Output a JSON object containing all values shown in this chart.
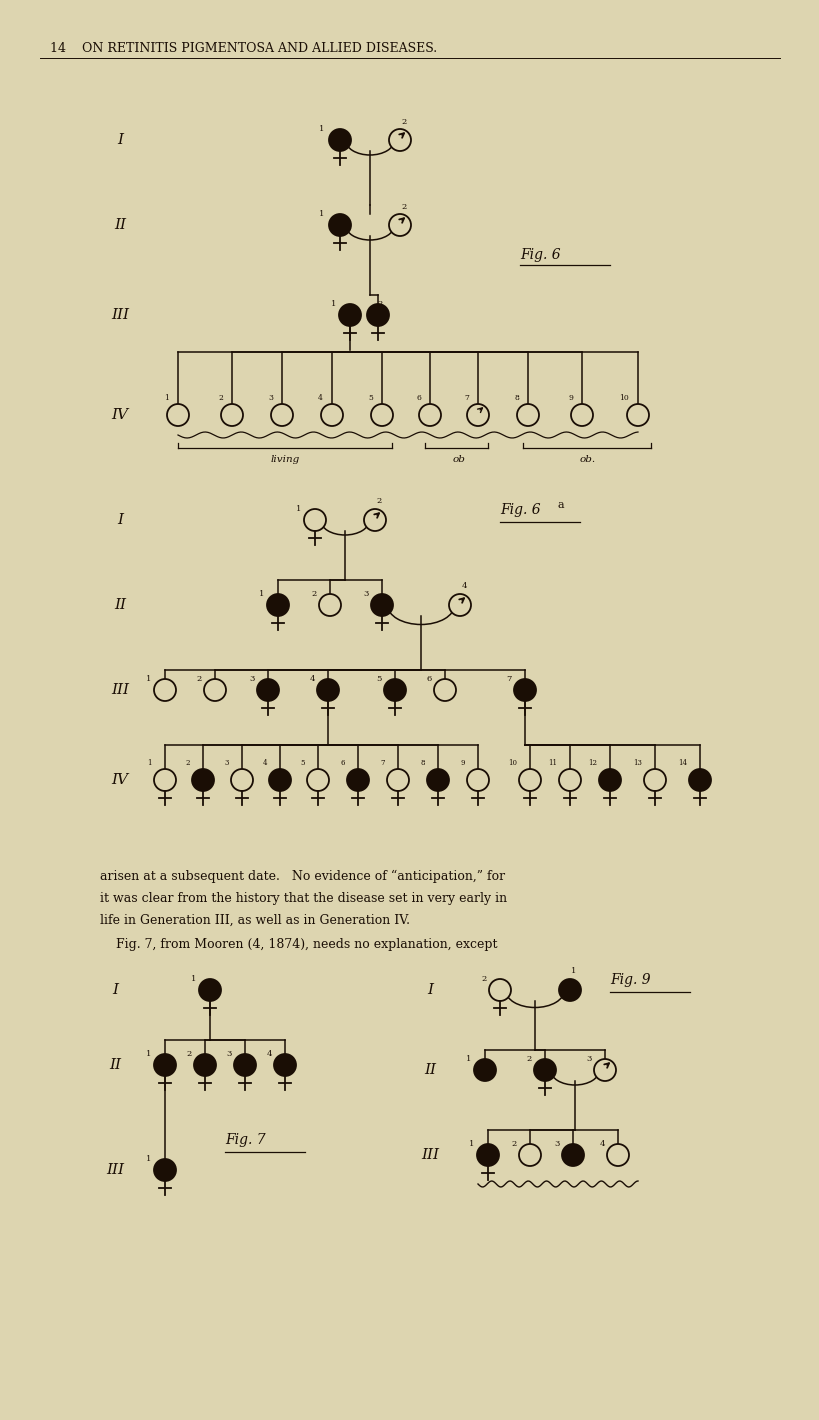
{
  "bg_color": "#ddd5b0",
  "text_color": "#1a0e05",
  "lc": "#1a0e05",
  "fc": "#1a0e05",
  "ec": "#ddd5b0",
  "header": "14    ON RETINITIS PIGMENTOSA AND ALLIED DISEASES.",
  "para1": "arisen at a subsequent date.   No evidence of “anticipation,” for",
  "para2": "it was clear from the history that the disease set in very early in",
  "para3": "life in Generation III, as well as in Generation IV.",
  "para4": "    Fig. 7, from Mooren (4, 1874), needs no explanation, except",
  "r": 11
}
